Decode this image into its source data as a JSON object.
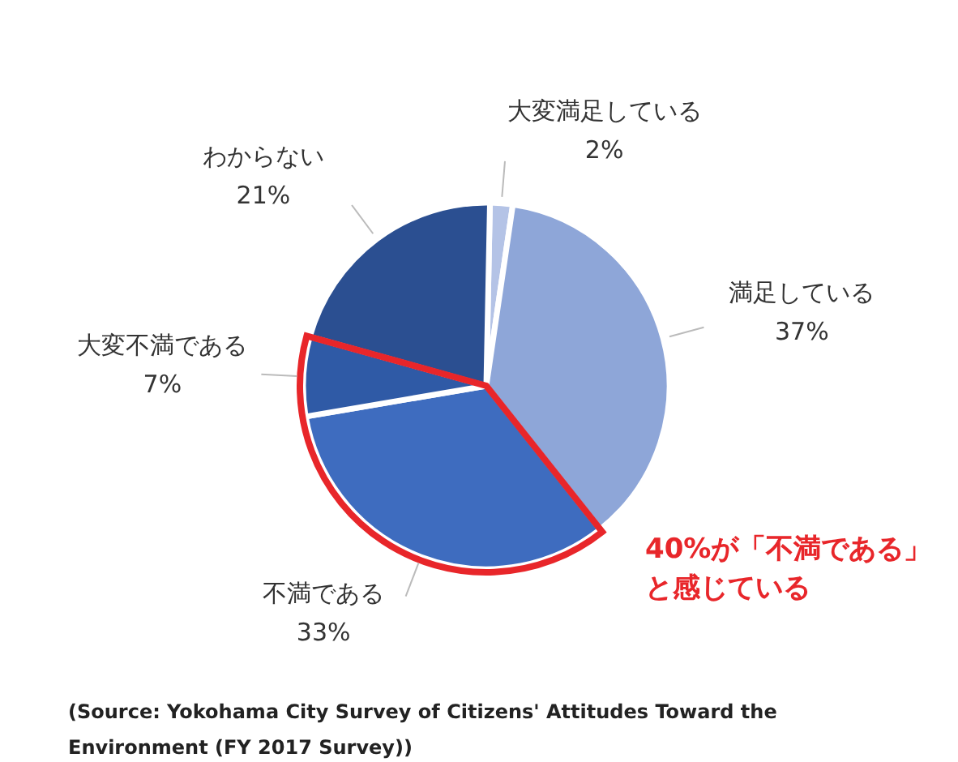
{
  "chart_data": {
    "type": "pie",
    "categories": [
      "大変満足している",
      "満足している",
      "不満である",
      "大変不満である",
      "わからない"
    ],
    "values": [
      2,
      37,
      33,
      7,
      21
    ],
    "value_labels": [
      "2%",
      "37%",
      "33%",
      "7%",
      "21%"
    ],
    "colors": [
      "#b4c3e6",
      "#8ea6d8",
      "#3e6cbf",
      "#2f5aa6",
      "#2b4f91"
    ],
    "annotations": [
      "40%が「不満である」と感じている",
      "(Source: Yokohama City Survey of Citizens' Attitudes Toward the Environment (FY 2017 Survey))"
    ]
  }
}
